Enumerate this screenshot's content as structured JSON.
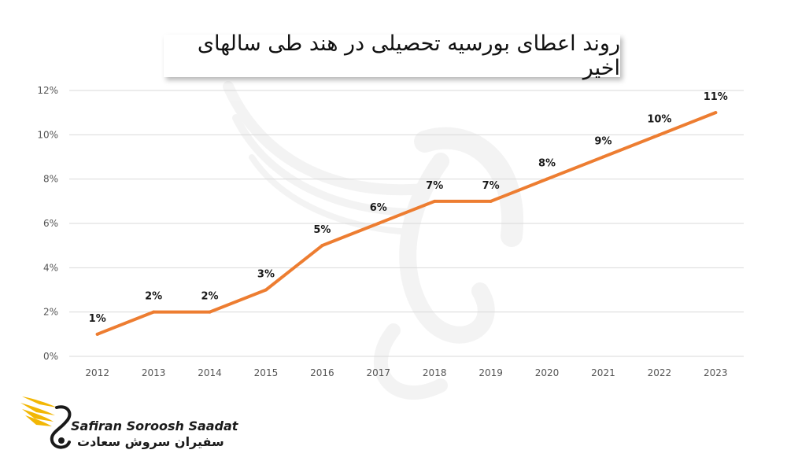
{
  "chart_data": {
    "type": "line",
    "title": "روند اعطای بورسیه تحصیلی در هند طی سالهای اخیر",
    "categories": [
      "2012",
      "2013",
      "2014",
      "2015",
      "2016",
      "2017",
      "2018",
      "2019",
      "2020",
      "2021",
      "2022",
      "2023"
    ],
    "series": [
      {
        "name": "",
        "values": [
          1,
          2,
          2,
          3,
          5,
          6,
          7,
          7,
          8,
          9,
          10,
          11
        ]
      }
    ],
    "data_labels": [
      "1%",
      "2%",
      "2%",
      "3%",
      "5%",
      "6%",
      "7%",
      "7%",
      "8%",
      "9%",
      "10%",
      "11%"
    ],
    "y_ticks": [
      "0%",
      "2%",
      "4%",
      "6%",
      "8%",
      "10%",
      "12%"
    ],
    "ylim": [
      0,
      12
    ],
    "ytick_step": 2,
    "grid": true,
    "xlabel": "",
    "ylabel": "",
    "line_color": "#ED7D31"
  },
  "logo": {
    "name_en": "Safiran Soroosh Saadat",
    "name_fa": "سفیران سروش سعادت",
    "colors": {
      "gold": "#F2B705",
      "dark": "#1A1A1A"
    }
  }
}
